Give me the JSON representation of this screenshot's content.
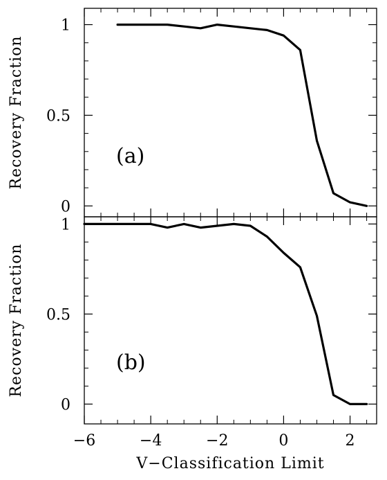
{
  "chart_data": [
    {
      "type": "line",
      "panel_label": "(a)",
      "ylabel": "Recovery Fraction",
      "xlabel": "",
      "xlim": [
        -6,
        2.8
      ],
      "ylim": [
        -0.06,
        1.09
      ],
      "xticks": [
        -6,
        -4,
        -2,
        0,
        2
      ],
      "yticks": [
        0,
        0.5,
        1
      ],
      "ytick_labels": [
        "0",
        "0.5",
        "1"
      ],
      "series": [
        {
          "x": [
            -5,
            -4.5,
            -4,
            -3.5,
            -3,
            -2.5,
            -2,
            -1.5,
            -1,
            -0.5,
            0,
            0.5,
            1,
            1.5,
            2,
            2.5
          ],
          "y": [
            1,
            1,
            1,
            1,
            0.99,
            0.98,
            1,
            0.99,
            0.98,
            0.97,
            0.94,
            0.86,
            0.36,
            0.07,
            0.02,
            0.0
          ]
        }
      ]
    },
    {
      "type": "line",
      "panel_label": "(b)",
      "ylabel": "Recovery Fraction",
      "xlabel": "V−Classification Limit",
      "xlim": [
        -6,
        2.8
      ],
      "ylim": [
        -0.11,
        1.04
      ],
      "xticks": [
        -6,
        -4,
        -2,
        0,
        2
      ],
      "xtick_labels": [
        "−6",
        "−4",
        "−2",
        "0",
        "2"
      ],
      "yticks": [
        0,
        0.5,
        1
      ],
      "ytick_labels": [
        "0",
        "0.5",
        "1"
      ],
      "series": [
        {
          "x": [
            -6,
            -5.5,
            -5,
            -4.5,
            -4,
            -3.5,
            -3,
            -2.5,
            -2,
            -1.5,
            -1,
            -0.5,
            0,
            0.5,
            1,
            1.5,
            2,
            2.5
          ],
          "y": [
            1,
            1,
            1,
            1,
            1,
            0.98,
            1,
            0.98,
            0.99,
            1,
            0.99,
            0.93,
            0.84,
            0.76,
            0.49,
            0.05,
            0.0,
            0.0
          ]
        }
      ]
    }
  ]
}
